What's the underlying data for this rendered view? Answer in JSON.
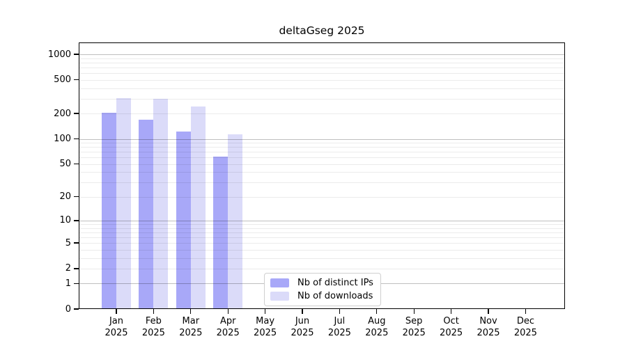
{
  "title": "deltaGseg 2025",
  "legend": {
    "items": [
      {
        "label": "Nb of distinct IPs",
        "color": "#a8a8f8"
      },
      {
        "label": "Nb of downloads",
        "color": "#dbdbf9"
      }
    ]
  },
  "chart_data": {
    "type": "bar",
    "title": "deltaGseg 2025",
    "categories": [
      "Jan 2025",
      "Feb 2025",
      "Mar 2025",
      "Apr 2025",
      "May 2025",
      "Jun 2025",
      "Jul 2025",
      "Aug 2025",
      "Sep 2025",
      "Oct 2025",
      "Nov 2025",
      "Dec 2025"
    ],
    "series": [
      {
        "name": "Nb of distinct IPs",
        "color": "#a8a8f8",
        "values": [
          205,
          170,
          122,
          61,
          null,
          null,
          null,
          null,
          null,
          null,
          null,
          null
        ]
      },
      {
        "name": "Nb of downloads",
        "color": "#dbdbf9",
        "values": [
          302,
          296,
          240,
          113,
          null,
          null,
          null,
          null,
          null,
          null,
          null,
          null
        ]
      }
    ],
    "xlabel": "",
    "ylabel": "",
    "yscale": "log1p",
    "ylim": [
      0,
      1380
    ],
    "y_ticks": [
      0,
      1,
      2,
      5,
      10,
      20,
      50,
      100,
      200,
      500,
      1000
    ],
    "grid": "horizontal",
    "grid_major_at": [
      1,
      10,
      100,
      1000
    ],
    "legend_position": "lower-center"
  }
}
